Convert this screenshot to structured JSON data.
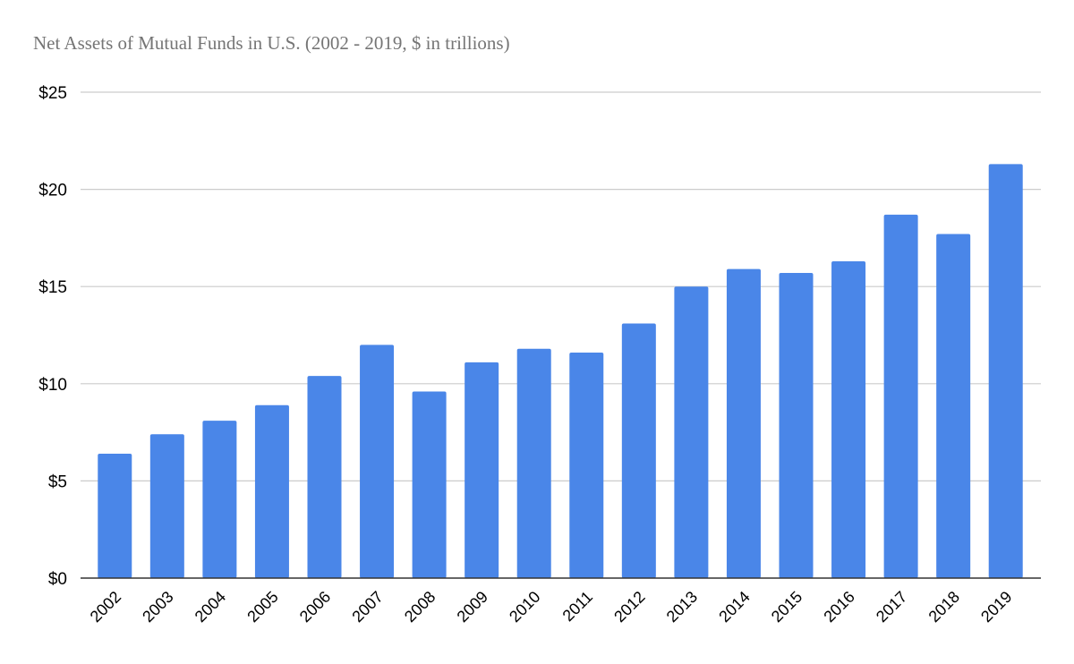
{
  "chart_data": {
    "type": "bar",
    "title": "Net Assets of Mutual Funds in U.S. (2002 - 2019, $ in trillions)",
    "xlabel": "",
    "ylabel": "",
    "categories": [
      "2002",
      "2003",
      "2004",
      "2005",
      "2006",
      "2007",
      "2008",
      "2009",
      "2010",
      "2011",
      "2012",
      "2013",
      "2014",
      "2015",
      "2016",
      "2017",
      "2018",
      "2019"
    ],
    "values": [
      6.4,
      7.4,
      8.1,
      8.9,
      10.4,
      12.0,
      9.6,
      11.1,
      11.8,
      11.6,
      13.1,
      15.0,
      15.9,
      15.7,
      16.3,
      18.7,
      17.7,
      21.3
    ],
    "ylim": [
      0,
      25
    ],
    "yticks": [
      0,
      5,
      10,
      15,
      20,
      25
    ],
    "ytick_labels": [
      "$0",
      "$5",
      "$10",
      "$15",
      "$20",
      "$25"
    ],
    "grid": true,
    "legend": "none",
    "colors": {
      "bar": "#4a86e8",
      "grid": "#cccccc",
      "axis": "#333333",
      "title": "#757575"
    }
  }
}
